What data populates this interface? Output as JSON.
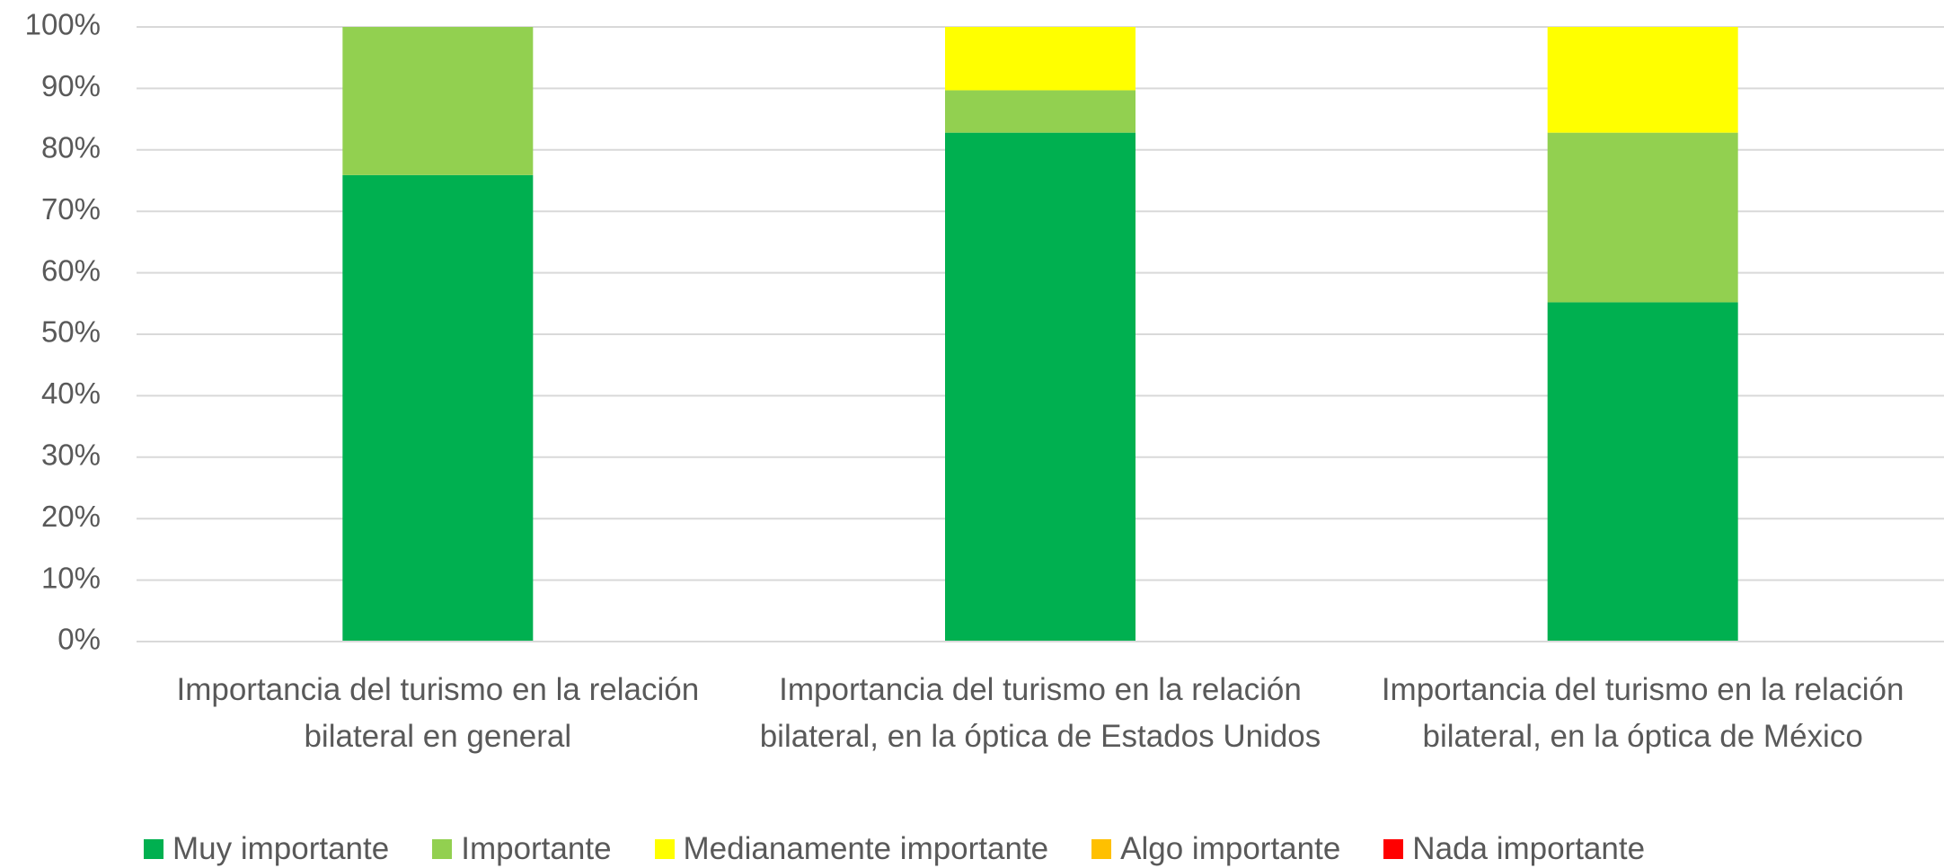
{
  "chart_data": {
    "type": "stacked_bar",
    "categories": [
      "Importancia del turismo en la relación bilateral en general",
      "Importancia del turismo en la relación bilateral, en la óptica de Estados Unidos",
      "Importancia del turismo en la relación bilateral, en la óptica de México"
    ],
    "series": [
      {
        "name": "Muy importante",
        "color": "#00b050",
        "values": [
          75.9,
          82.8,
          55.2
        ]
      },
      {
        "name": "Importante",
        "color": "#92d050",
        "values": [
          24.1,
          6.9,
          27.6
        ]
      },
      {
        "name": "Medianamente importante",
        "color": "#ffff00",
        "values": [
          0,
          10.3,
          17.2
        ]
      },
      {
        "name": "Algo importante",
        "color": "#ffc000",
        "values": [
          0,
          0,
          0
        ]
      },
      {
        "name": "Nada importante",
        "color": "#ff0000",
        "values": [
          0,
          0,
          0
        ]
      }
    ],
    "ylim": [
      0,
      100
    ],
    "yticks": [
      {
        "value": 0,
        "label": "0%"
      },
      {
        "value": 10,
        "label": "10%"
      },
      {
        "value": 20,
        "label": "20%"
      },
      {
        "value": 30,
        "label": "30%"
      },
      {
        "value": 40,
        "label": "40%"
      },
      {
        "value": 50,
        "label": "50%"
      },
      {
        "value": 60,
        "label": "60%"
      },
      {
        "value": 70,
        "label": "70%"
      },
      {
        "value": 80,
        "label": "80%"
      },
      {
        "value": 90,
        "label": "90%"
      },
      {
        "value": 100,
        "label": "100%"
      }
    ],
    "grid": true,
    "legend": "bottom"
  }
}
